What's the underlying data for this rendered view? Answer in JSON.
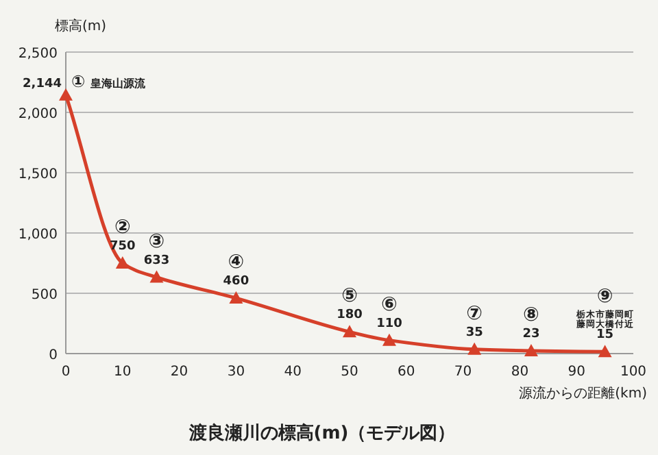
{
  "chart_data": {
    "type": "line",
    "title": "渡良瀬川の標高(m)（モデル図）",
    "xlabel": "源流からの距離(km)",
    "ylabel": "標高(m)",
    "x": [
      0,
      10,
      16,
      30,
      50,
      57,
      72,
      82,
      95
    ],
    "series": [
      {
        "color": "#d6402a",
        "values": [
          2144,
          750,
          633,
          460,
          180,
          110,
          35,
          23,
          15
        ],
        "value_labels": [
          "2,144",
          "750",
          "633",
          "460",
          "180",
          "110",
          "35",
          "23",
          "15"
        ]
      }
    ],
    "xlim": [
      0,
      100
    ],
    "xticks": [
      0,
      10,
      20,
      30,
      40,
      50,
      60,
      70,
      80,
      90,
      100
    ],
    "ylim": [
      0,
      2500
    ],
    "yticks": [
      0,
      {
        "value": 500,
        "label": "500"
      },
      {
        "value": 1000,
        "label": "1,000"
      },
      {
        "value": 1500,
        "label": "1,500"
      },
      {
        "value": 2000,
        "label": "2,000"
      },
      {
        "value": 2500,
        "label": "2,500"
      }
    ],
    "grid": "y",
    "marker": "triangle",
    "line_style": "solid",
    "annotations": [
      {
        "text": "①",
        "x": 0,
        "y": 2144
      },
      {
        "text": "皇海山源流",
        "x": 0,
        "y": 2144
      },
      {
        "text": "②",
        "x": 10,
        "y": 750
      },
      {
        "text": "③",
        "x": 16,
        "y": 633
      },
      {
        "text": "④",
        "x": 30,
        "y": 460
      },
      {
        "text": "⑤",
        "x": 50,
        "y": 180
      },
      {
        "text": "⑥",
        "x": 57,
        "y": 110
      },
      {
        "text": "⑦",
        "x": 72,
        "y": 35
      },
      {
        "text": "⑧",
        "x": 82,
        "y": 23
      },
      {
        "text": "⑨",
        "x": 95,
        "y": 15
      },
      {
        "text": "栃木市藤岡町藤岡大橋付近",
        "x": 95,
        "y": 15
      }
    ]
  }
}
